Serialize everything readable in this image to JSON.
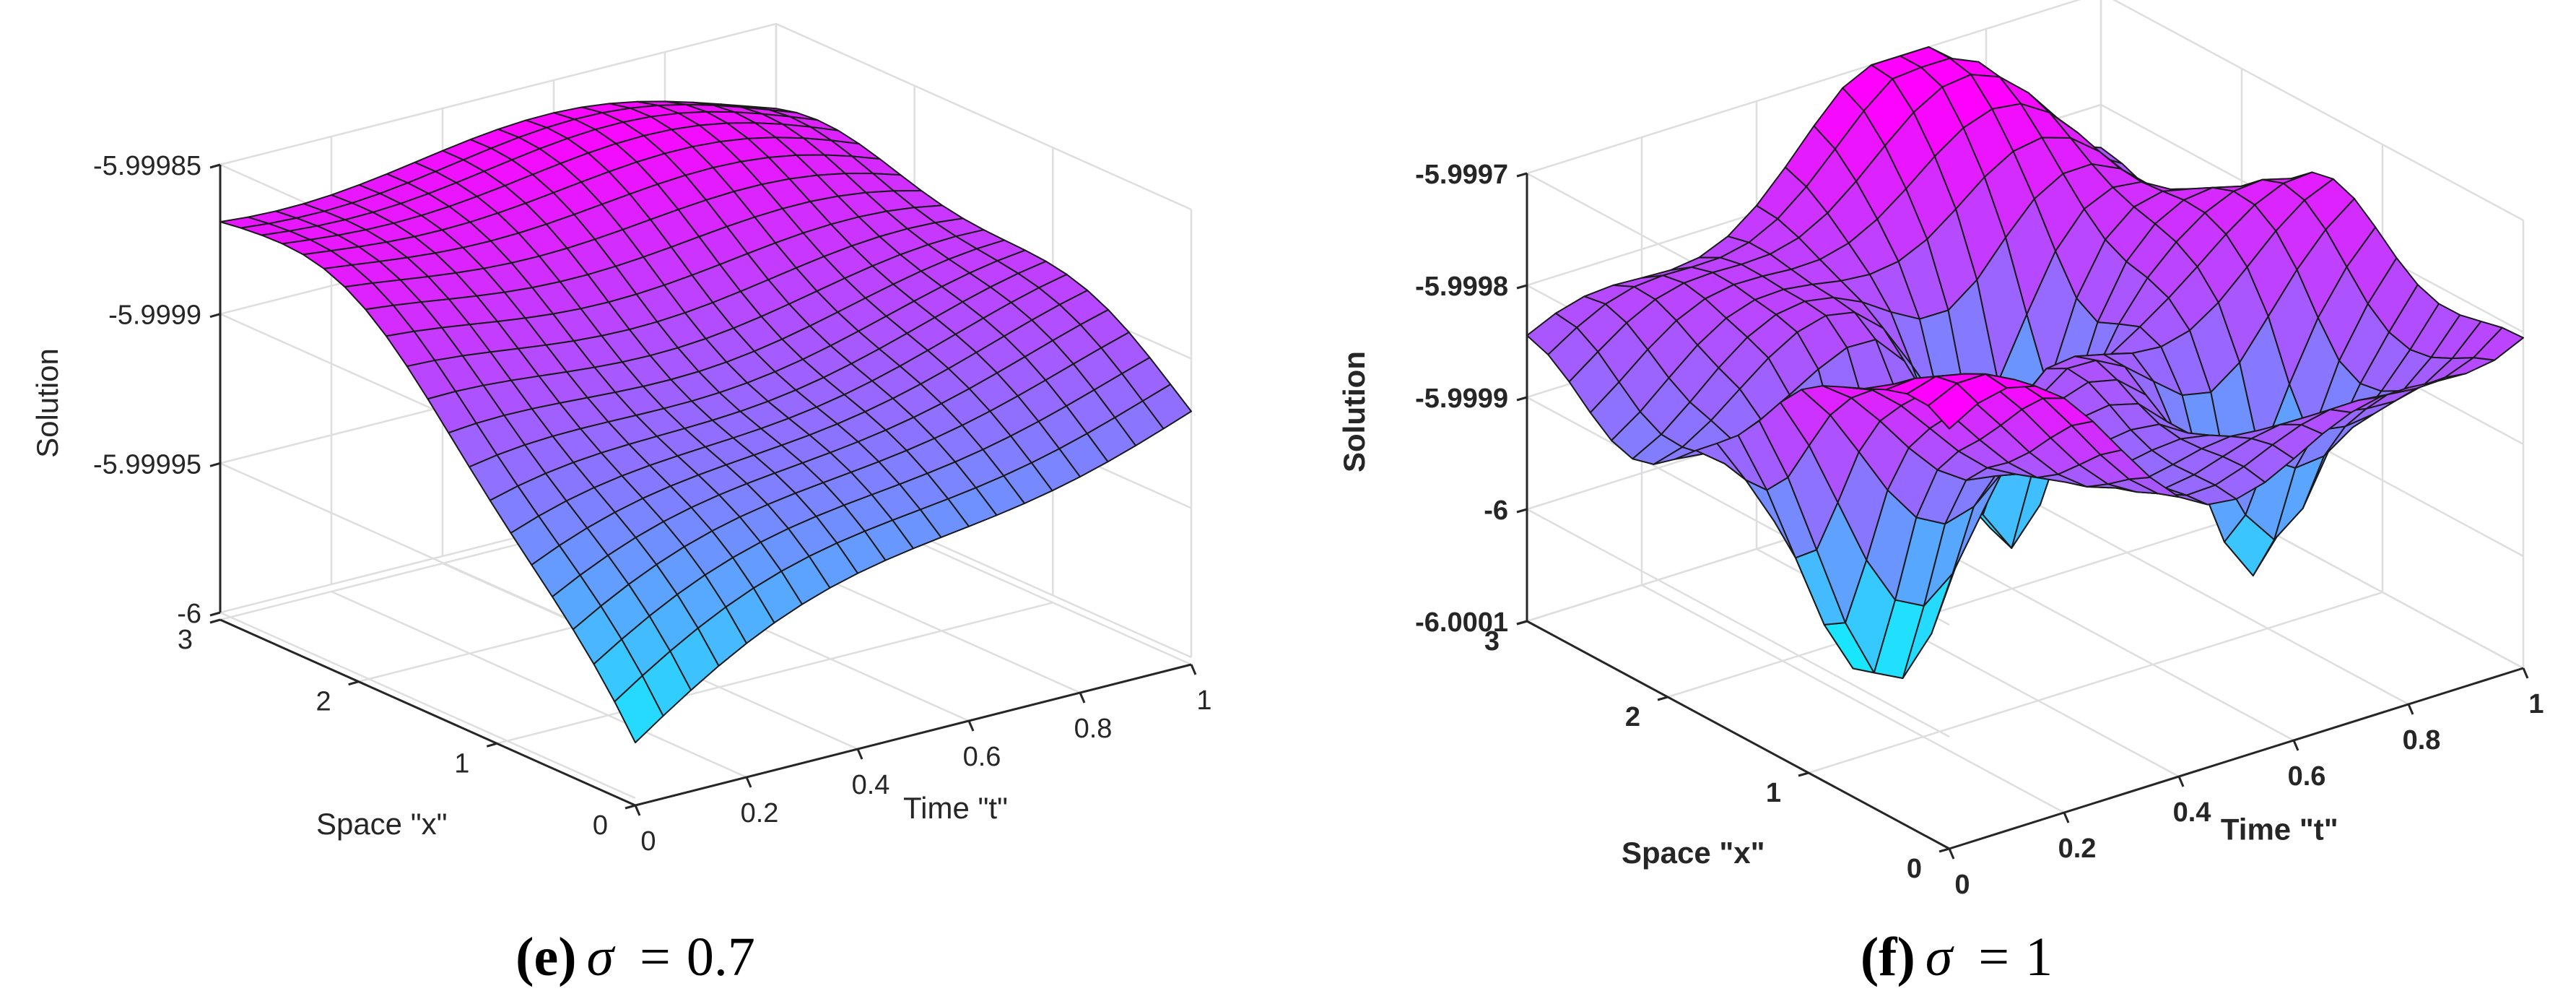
{
  "charts": [
    {
      "panel_letter": "e",
      "caption": {
        "letter": "e",
        "symbol": "σ",
        "equals": "=",
        "value": "0.7"
      },
      "chart_data": {
        "type": "surface",
        "title": "",
        "xlabel": "Time \"t\"",
        "ylabel": "Space \"x\"",
        "zlabel": "Solution",
        "xlim": [
          0,
          1
        ],
        "ylim": [
          0,
          3
        ],
        "zlim": [
          -6,
          -5.99985
        ],
        "x_ticks": [
          "0",
          "0.2",
          "0.4",
          "0.6",
          "0.8",
          "1"
        ],
        "y_ticks": [
          "0",
          "1",
          "2",
          "3"
        ],
        "z_ticks": [
          "-6",
          "-5.99995",
          "-5.9999",
          "-5.99985"
        ],
        "z_tick_values": [
          -6,
          -5.99995,
          -5.9999,
          -5.99985
        ],
        "grid": true,
        "colormap": [
          "#00ffff",
          "#ff00ff"
        ],
        "grid_size": [
          21,
          21
        ],
        "mode": "smooth"
      }
    },
    {
      "panel_letter": "f",
      "caption": {
        "letter": "f",
        "symbol": "σ",
        "equals": "=",
        "value": "1"
      },
      "chart_data": {
        "type": "surface",
        "title": "",
        "xlabel": "Time \"t\"",
        "ylabel": "Space \"x\"",
        "zlabel": "Solution",
        "xlim": [
          0,
          1
        ],
        "ylim": [
          0,
          3
        ],
        "zlim": [
          -6.0001,
          -5.9997
        ],
        "x_ticks": [
          "0",
          "0.2",
          "0.4",
          "0.6",
          "0.8",
          "1"
        ],
        "y_ticks": [
          "0",
          "1",
          "2",
          "3"
        ],
        "z_ticks": [
          "-6.0001",
          "-6",
          "-5.9999",
          "-5.9998",
          "-5.9997"
        ],
        "z_tick_values": [
          -6.0001,
          -6,
          -5.9999,
          -5.9998,
          -5.9997
        ],
        "grid": true,
        "colormap": [
          "#00ffff",
          "#ff00ff"
        ],
        "grid_size": [
          21,
          21
        ],
        "mode": "oscillating"
      }
    }
  ]
}
